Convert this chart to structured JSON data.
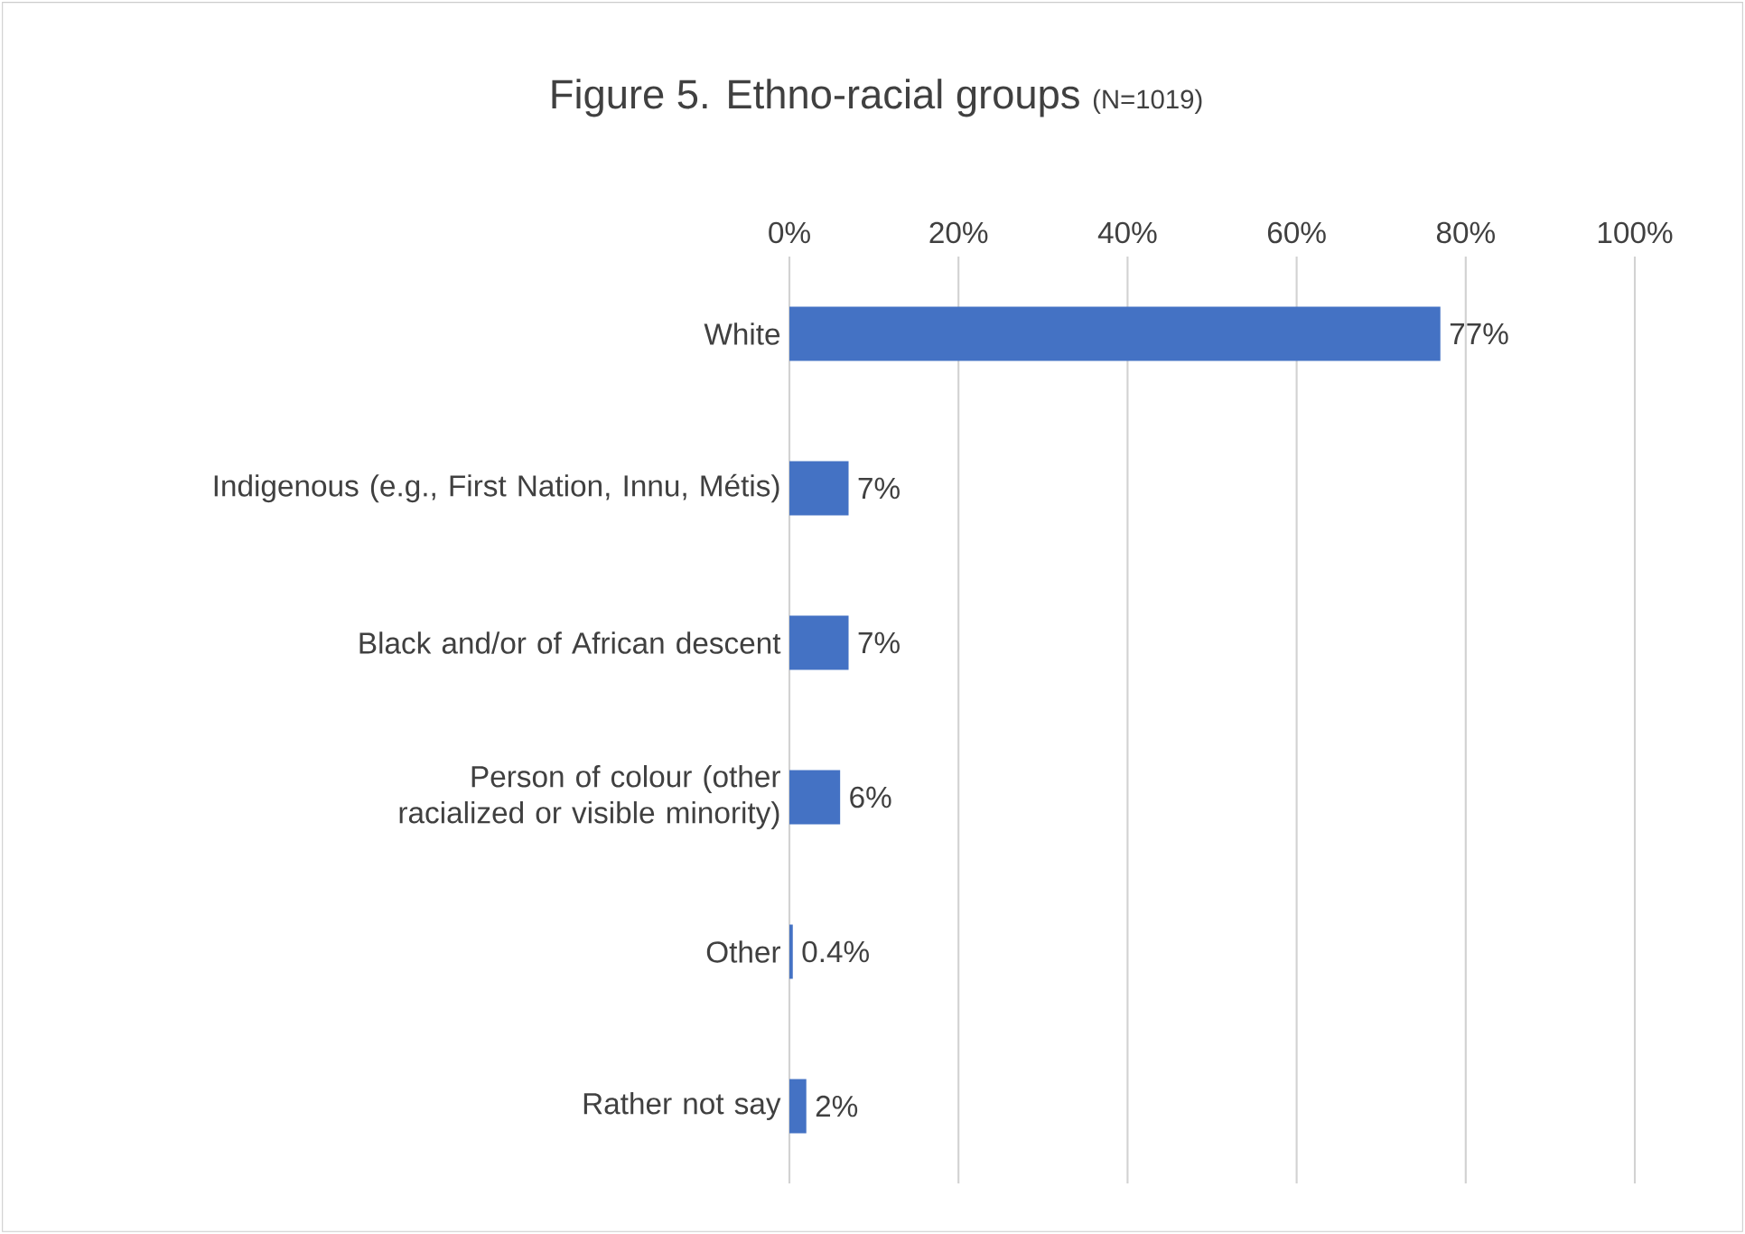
{
  "chart_data": {
    "type": "bar",
    "orientation": "horizontal",
    "title": "Figure 5. Ethno-racial groups",
    "subtitle": "(N=1019)",
    "categories": [
      "White",
      "Indigenous (e.g., First Nation, Innu, Métis)",
      "Black and/or of African descent",
      "Person of colour (other racialized or visible minority)",
      "Other",
      "Rather not say"
    ],
    "values": [
      77,
      7,
      7,
      6,
      0.4,
      2
    ],
    "value_labels": [
      "77%",
      "7%",
      "7%",
      "6%",
      "0.4%",
      "2%"
    ],
    "color": "#4472c4",
    "xlim": [
      0,
      100
    ],
    "xticks": [
      {
        "value": 0,
        "label": "0%"
      },
      {
        "value": 20,
        "label": "20%"
      },
      {
        "value": 40,
        "label": "40%"
      },
      {
        "value": 60,
        "label": "60%"
      },
      {
        "value": 80,
        "label": "80%"
      },
      {
        "value": 100,
        "label": "100%"
      }
    ],
    "grid": "x"
  }
}
